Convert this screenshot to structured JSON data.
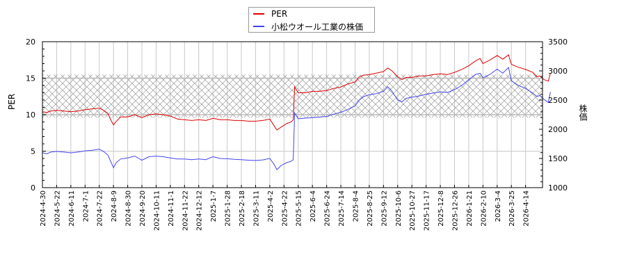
{
  "legend": {
    "items": [
      {
        "label": "PER",
        "color": "#dd0000"
      },
      {
        "label": "小松ウオール工業の株価",
        "color": "#4444ee"
      }
    ]
  },
  "axes": {
    "left_label": "PER",
    "right_label": "株価"
  },
  "chart_data": {
    "type": "line",
    "title": "",
    "xlabel": "",
    "ylabel": "PER",
    "ylabel_right": "株価",
    "ylim": [
      0,
      20
    ],
    "ylim_right": [
      1000,
      3500
    ],
    "yticks": [
      0,
      5,
      10,
      15,
      20
    ],
    "yticks_right": [
      1000,
      1500,
      2000,
      2500,
      3000,
      3500
    ],
    "grid": true,
    "legend_position": "top-center",
    "shaded_band": {
      "axis": "left",
      "from": 9.6,
      "to": 15.5,
      "pattern": "crosshatch"
    },
    "categories": [
      "2024-4-30",
      "2024-5-22",
      "2024-6-11",
      "2024-7-1",
      "2024-7-22",
      "2024-8-9",
      "2024-8-30",
      "2024-9-20",
      "2024-10-11",
      "2024-11-1",
      "2024-11-22",
      "2024-12-12",
      "2025-1-7",
      "2025-1-28",
      "2025-2-18",
      "2025-3-11",
      "2025-4-2",
      "2025-4-22",
      "2025-5-15",
      "2025-6-4",
      "2025-6-24",
      "2025-7-14",
      "2025-8-4",
      "2025-8-25",
      "2025-9-12",
      "2025-10-6",
      "2025-10-27",
      "2025-11-17",
      "2025-12-8",
      "2025-12-26",
      "2026-1-21",
      "2026-2-10",
      "2026-3-4",
      "2026-3-25",
      "2026-4-14"
    ],
    "series": [
      {
        "name": "PER",
        "axis": "left",
        "color": "#dd0000",
        "points": [
          [
            0,
            10.4
          ],
          [
            0.3,
            10.3
          ],
          [
            0.6,
            10.5
          ],
          [
            1,
            10.6
          ],
          [
            1.5,
            10.5
          ],
          [
            2,
            10.4
          ],
          [
            2.5,
            10.5
          ],
          [
            3,
            10.7
          ],
          [
            3.5,
            10.8
          ],
          [
            4,
            10.9
          ],
          [
            4.3,
            10.6
          ],
          [
            4.6,
            10.2
          ],
          [
            4.8,
            9.3
          ],
          [
            5,
            8.6
          ],
          [
            5.2,
            9.1
          ],
          [
            5.5,
            9.7
          ],
          [
            6,
            9.7
          ],
          [
            6.5,
            10.0
          ],
          [
            7,
            9.6
          ],
          [
            7.5,
            10.0
          ],
          [
            8,
            10.1
          ],
          [
            8.5,
            10.0
          ],
          [
            9,
            9.8
          ],
          [
            9.5,
            9.4
          ],
          [
            10,
            9.3
          ],
          [
            10.5,
            9.2
          ],
          [
            11,
            9.3
          ],
          [
            11.5,
            9.2
          ],
          [
            12,
            9.5
          ],
          [
            12.5,
            9.3
          ],
          [
            13,
            9.3
          ],
          [
            13.5,
            9.2
          ],
          [
            14,
            9.2
          ],
          [
            14.5,
            9.1
          ],
          [
            15,
            9.1
          ],
          [
            15.5,
            9.2
          ],
          [
            16,
            9.4
          ],
          [
            16.3,
            8.5
          ],
          [
            16.5,
            7.9
          ],
          [
            16.8,
            8.3
          ],
          [
            17.2,
            8.8
          ],
          [
            17.5,
            9.0
          ],
          [
            17.65,
            9.3
          ],
          [
            17.75,
            13.8
          ],
          [
            18,
            13.0
          ],
          [
            18.5,
            13.0
          ],
          [
            19,
            13.2
          ],
          [
            19.5,
            13.2
          ],
          [
            20,
            13.3
          ],
          [
            20.5,
            13.6
          ],
          [
            21,
            13.8
          ],
          [
            21.5,
            14.2
          ],
          [
            22,
            14.5
          ],
          [
            22.3,
            15.2
          ],
          [
            22.6,
            15.4
          ],
          [
            23,
            15.5
          ],
          [
            23.5,
            15.7
          ],
          [
            24,
            15.9
          ],
          [
            24.3,
            16.4
          ],
          [
            24.6,
            16.0
          ],
          [
            25,
            15.2
          ],
          [
            25.3,
            14.8
          ],
          [
            25.6,
            15.1
          ],
          [
            26,
            15.1
          ],
          [
            26.5,
            15.3
          ],
          [
            27,
            15.3
          ],
          [
            27.5,
            15.5
          ],
          [
            28,
            15.6
          ],
          [
            28.5,
            15.5
          ],
          [
            29,
            15.8
          ],
          [
            29.5,
            16.2
          ],
          [
            30,
            16.7
          ],
          [
            30.5,
            17.4
          ],
          [
            30.8,
            17.7
          ],
          [
            31,
            17.0
          ],
          [
            31.5,
            17.5
          ],
          [
            32,
            18.1
          ],
          [
            32.4,
            17.6
          ],
          [
            32.8,
            18.2
          ],
          [
            33,
            16.9
          ],
          [
            33.5,
            16.5
          ],
          [
            34,
            16.2
          ],
          [
            34.5,
            15.8
          ],
          [
            34.8,
            15.2
          ],
          [
            35,
            15.3
          ],
          [
            35.3,
            14.8
          ],
          [
            35.6,
            14.6
          ],
          [
            35.75,
            15.7
          ]
        ]
      },
      {
        "name": "小松ウオール工業の株価",
        "axis": "right",
        "color": "#4444ee",
        "points": [
          [
            0,
            1600
          ],
          [
            0.3,
            1580
          ],
          [
            0.6,
            1610
          ],
          [
            1,
            1620
          ],
          [
            1.5,
            1610
          ],
          [
            2,
            1595
          ],
          [
            2.5,
            1610
          ],
          [
            3,
            1630
          ],
          [
            3.5,
            1640
          ],
          [
            4,
            1660
          ],
          [
            4.3,
            1620
          ],
          [
            4.6,
            1560
          ],
          [
            4.8,
            1450
          ],
          [
            5,
            1340
          ],
          [
            5.2,
            1430
          ],
          [
            5.5,
            1490
          ],
          [
            6,
            1510
          ],
          [
            6.5,
            1540
          ],
          [
            7,
            1470
          ],
          [
            7.5,
            1530
          ],
          [
            8,
            1540
          ],
          [
            8.5,
            1530
          ],
          [
            9,
            1510
          ],
          [
            9.5,
            1490
          ],
          [
            10,
            1490
          ],
          [
            10.5,
            1480
          ],
          [
            11,
            1490
          ],
          [
            11.5,
            1480
          ],
          [
            12,
            1530
          ],
          [
            12.5,
            1500
          ],
          [
            13,
            1495
          ],
          [
            13.5,
            1485
          ],
          [
            14,
            1480
          ],
          [
            14.5,
            1470
          ],
          [
            15,
            1465
          ],
          [
            15.5,
            1475
          ],
          [
            16,
            1500
          ],
          [
            16.3,
            1400
          ],
          [
            16.5,
            1310
          ],
          [
            16.8,
            1380
          ],
          [
            17.2,
            1430
          ],
          [
            17.5,
            1450
          ],
          [
            17.65,
            1480
          ],
          [
            17.75,
            2280
          ],
          [
            18,
            2180
          ],
          [
            18.5,
            2190
          ],
          [
            19,
            2200
          ],
          [
            19.5,
            2210
          ],
          [
            20,
            2220
          ],
          [
            20.5,
            2260
          ],
          [
            21,
            2290
          ],
          [
            21.5,
            2340
          ],
          [
            22,
            2400
          ],
          [
            22.3,
            2500
          ],
          [
            22.6,
            2560
          ],
          [
            23,
            2590
          ],
          [
            23.5,
            2610
          ],
          [
            24,
            2650
          ],
          [
            24.3,
            2730
          ],
          [
            24.6,
            2650
          ],
          [
            25,
            2500
          ],
          [
            25.3,
            2470
          ],
          [
            25.6,
            2530
          ],
          [
            26,
            2550
          ],
          [
            26.5,
            2570
          ],
          [
            27,
            2600
          ],
          [
            27.5,
            2620
          ],
          [
            28,
            2640
          ],
          [
            28.5,
            2630
          ],
          [
            29,
            2680
          ],
          [
            29.5,
            2750
          ],
          [
            30,
            2850
          ],
          [
            30.5,
            2940
          ],
          [
            30.8,
            2960
          ],
          [
            31,
            2880
          ],
          [
            31.5,
            2940
          ],
          [
            32,
            3030
          ],
          [
            32.4,
            2960
          ],
          [
            32.8,
            3060
          ],
          [
            33,
            2830
          ],
          [
            33.5,
            2750
          ],
          [
            34,
            2700
          ],
          [
            34.5,
            2620
          ],
          [
            34.8,
            2560
          ],
          [
            35,
            2580
          ],
          [
            35.3,
            2510
          ],
          [
            35.6,
            2460
          ],
          [
            35.75,
            2640
          ]
        ]
      }
    ]
  }
}
